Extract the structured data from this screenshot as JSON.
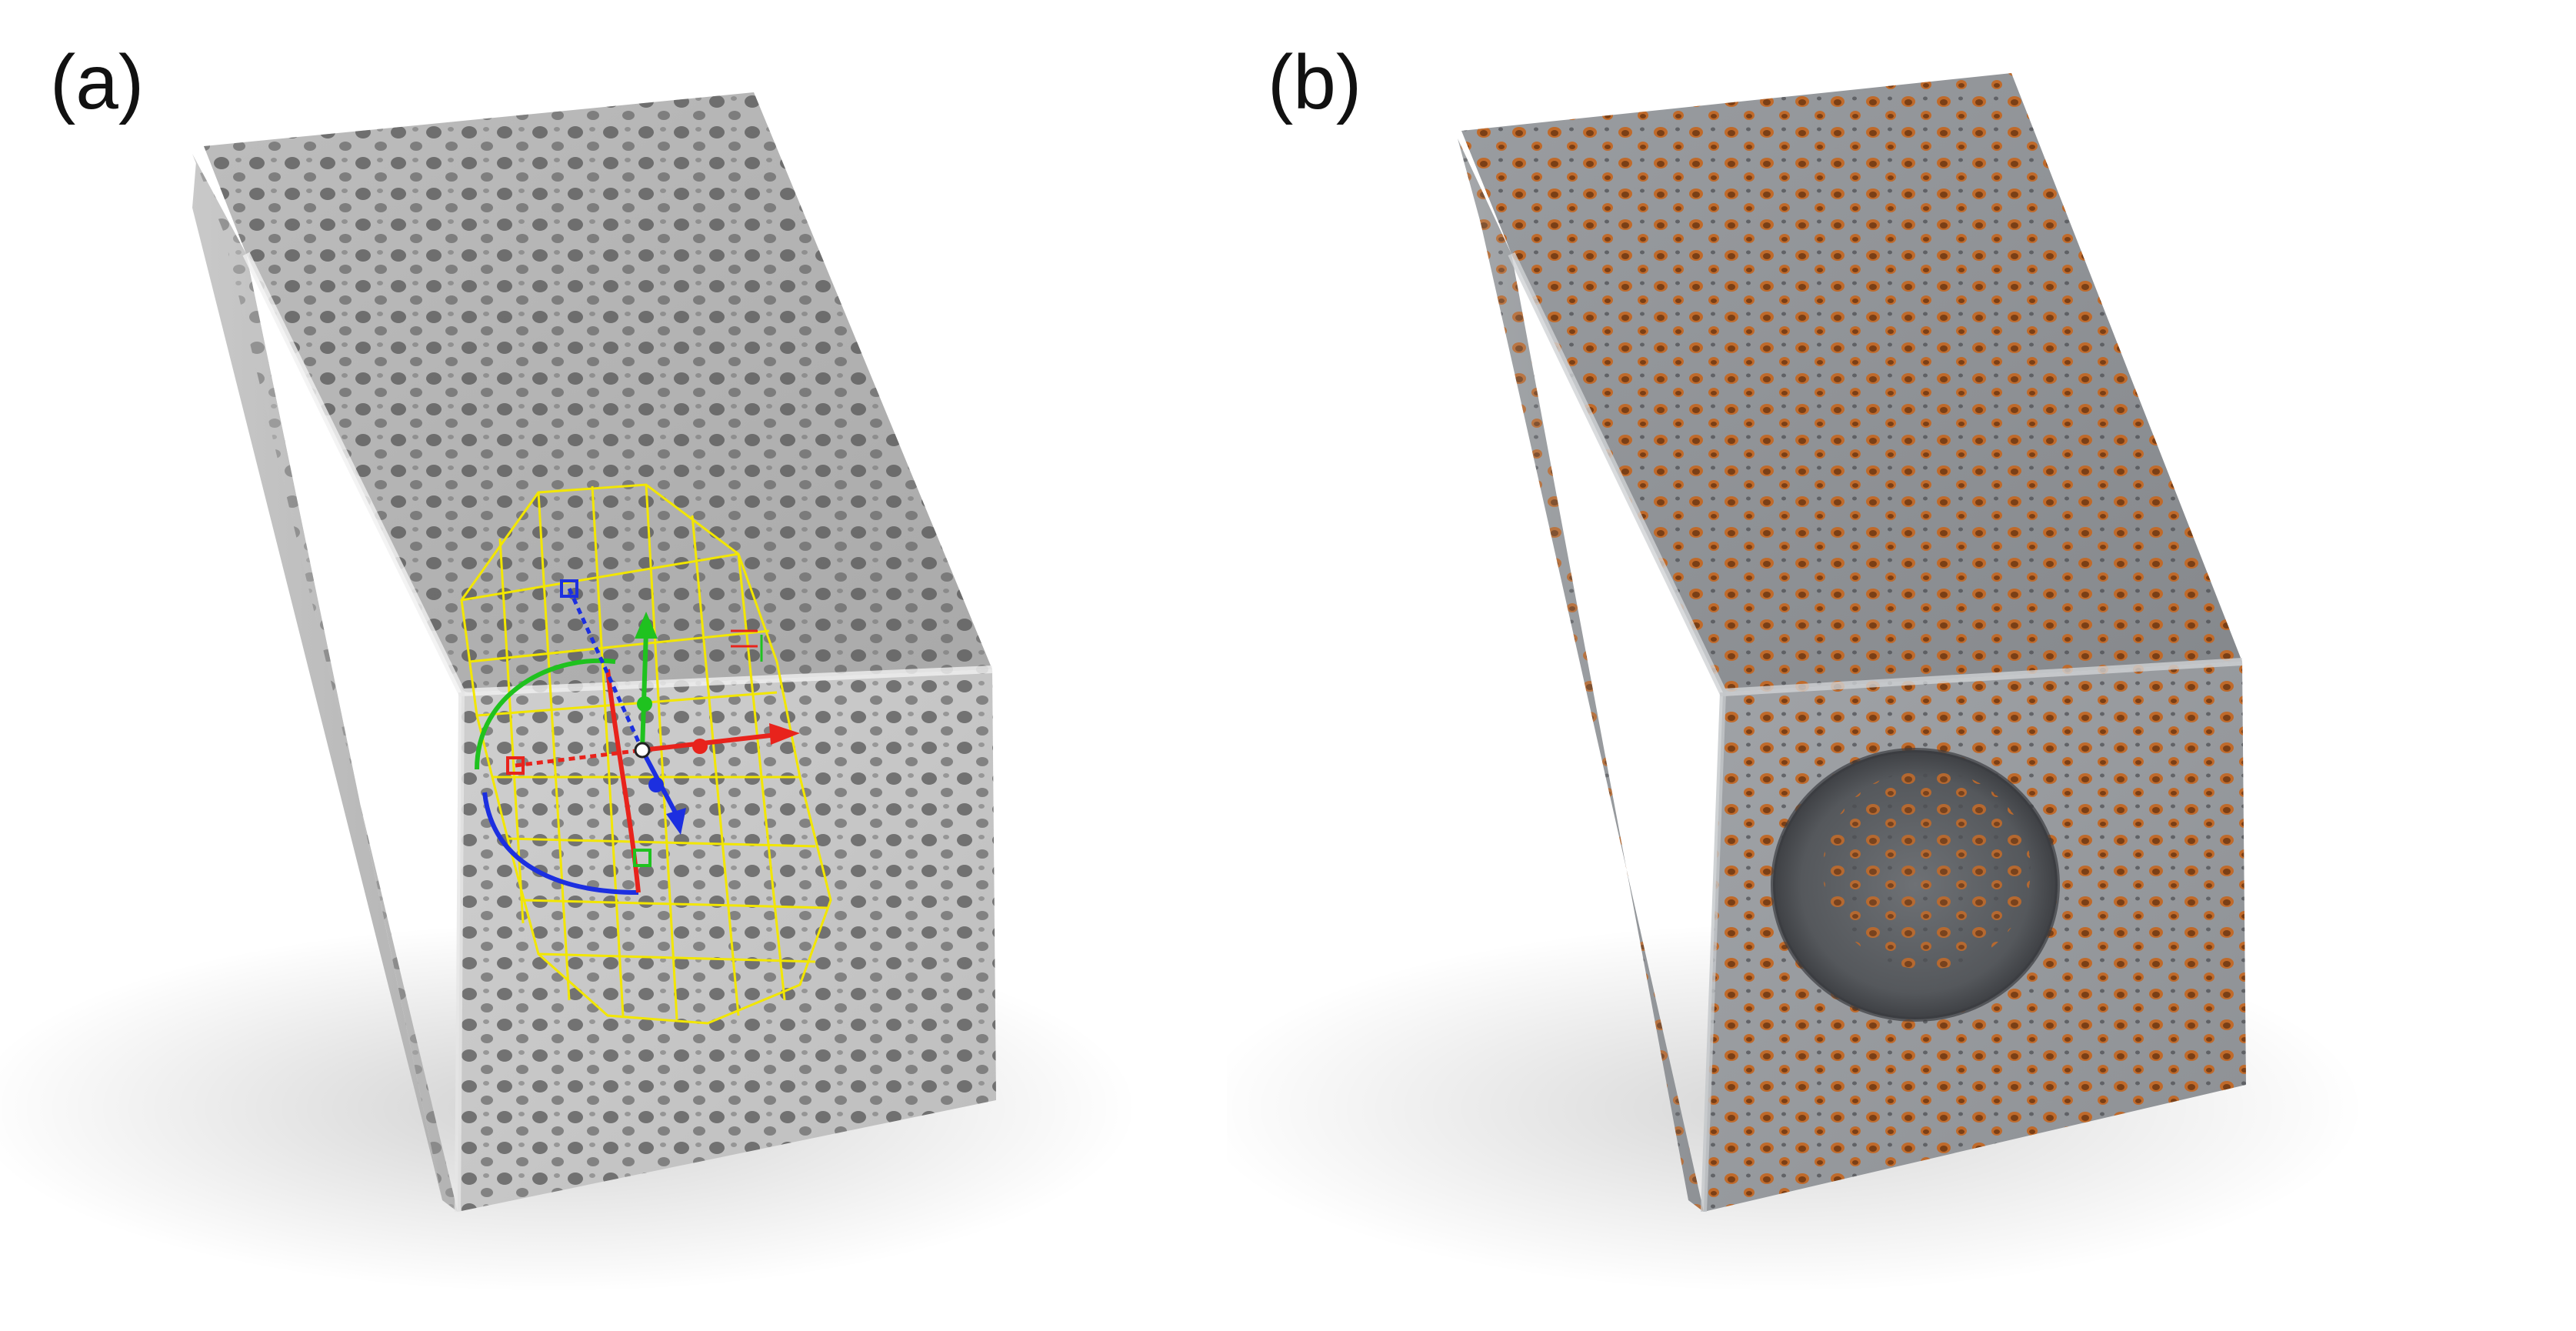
{
  "figure": {
    "panel_a": {
      "label": "(a)",
      "colors": {
        "body": "#c8c8c8",
        "wireframe": "#f2e600",
        "x_axis": "#e8231c",
        "y_axis": "#1fc21f",
        "z_axis": "#1c2fe0"
      }
    },
    "panel_b": {
      "label": "(b)",
      "colors": {
        "body": "#8f9296",
        "pore_inner": "#c06a2a"
      }
    }
  }
}
